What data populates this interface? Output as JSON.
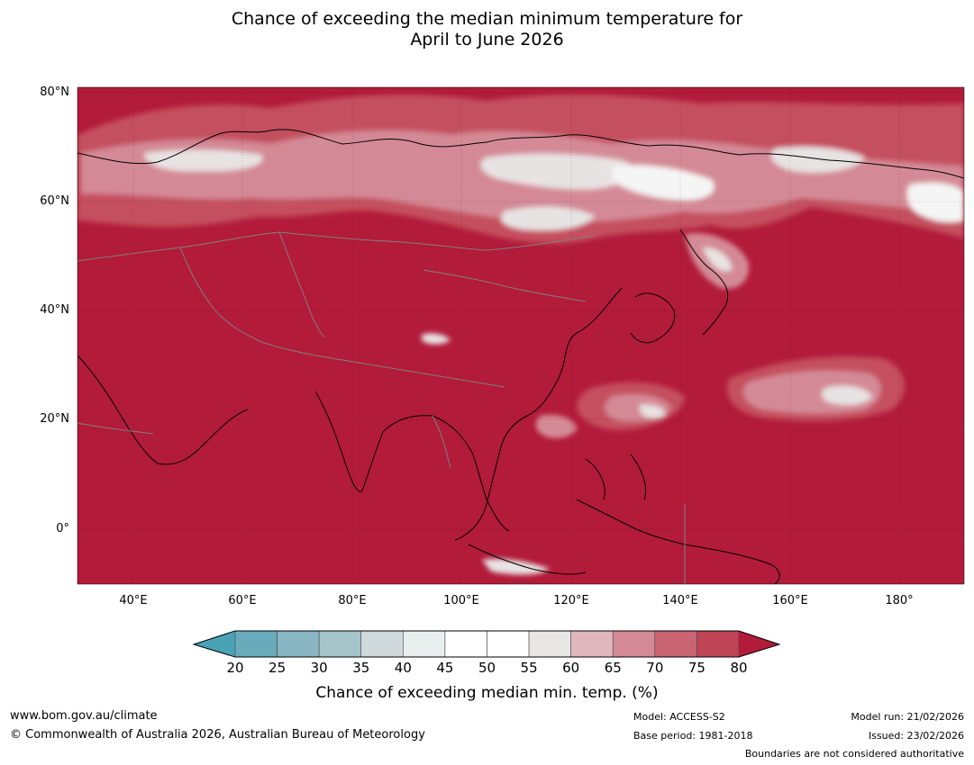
{
  "title": {
    "line1": "Chance of exceeding the median minimum temperature for",
    "line2": "April to June 2026"
  },
  "map": {
    "lat_labels": [
      "80°N",
      "60°N",
      "40°N",
      "20°N",
      "0°"
    ],
    "lon_labels": [
      "40°E",
      "60°E",
      "80°E",
      "100°E",
      "120°E",
      "140°E",
      "160°E",
      "180°"
    ],
    "colors": {
      "dominant": "#b21b3a",
      "ocean_land_base": "#b21b3a",
      "light_band": "#e8e3e3",
      "pale": "#f5f5f5",
      "pink": "#d48a96",
      "mid_red": "#c4505f",
      "coast": "#000000",
      "border": "#808080"
    }
  },
  "colorbar": {
    "ticks": [
      "20",
      "25",
      "30",
      "35",
      "40",
      "45",
      "50",
      "55",
      "60",
      "65",
      "70",
      "75",
      "80"
    ],
    "bin_colors": [
      "#6aabbb",
      "#88b6c2",
      "#a6c5ca",
      "#d0d9dc",
      "#e9eeef",
      "#ffffff",
      "#ffffff",
      "#e9e7e6",
      "#dfb7bd",
      "#d48a96",
      "#c96573",
      "#bf4556"
    ],
    "low_color": "#4aa3b5",
    "high_color": "#b21b3a",
    "label": "Chance of exceeding median min. temp. (%)"
  },
  "footer": {
    "website": "www.bom.gov.au/climate",
    "copyright": "© Commonwealth of Australia 2026, Australian Bureau of Meteorology",
    "model": "Model: ACCESS-S2",
    "base_period": "Base period: 1981-2018",
    "model_run": "Model run: 21/02/2026",
    "issued": "Issued: 23/02/2026",
    "disclaimer": "Boundaries are not considered authoritative"
  }
}
